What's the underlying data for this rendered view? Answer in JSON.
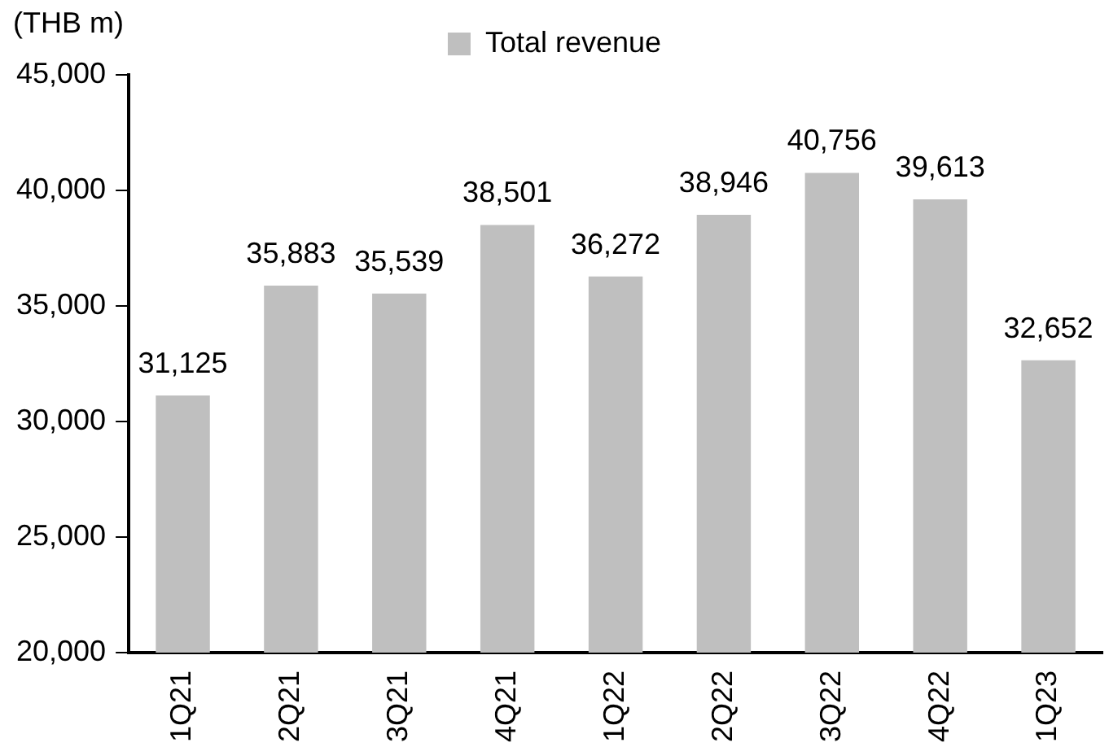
{
  "chart_data": {
    "type": "bar",
    "ylabel": "(THB m)",
    "categories": [
      "1Q21",
      "2Q21",
      "3Q21",
      "4Q21",
      "1Q22",
      "2Q22",
      "3Q22",
      "4Q22",
      "1Q23"
    ],
    "series": [
      {
        "name": "Total revenue",
        "color": "#bfbfbf",
        "values": [
          31125,
          35883,
          35539,
          38501,
          36272,
          38946,
          40756,
          39613,
          32652
        ],
        "value_labels": [
          "31,125",
          "35,883",
          "35,539",
          "38,501",
          "36,272",
          "38,946",
          "40,756",
          "39,613",
          "32,652"
        ]
      }
    ],
    "ylim": [
      20000,
      45000
    ],
    "yticks": [
      {
        "value": 20000,
        "label": "20,000"
      },
      {
        "value": 25000,
        "label": "25,000"
      },
      {
        "value": 30000,
        "label": "30,000"
      },
      {
        "value": 35000,
        "label": "35,000"
      },
      {
        "value": 40000,
        "label": "40,000"
      },
      {
        "value": 45000,
        "label": "45,000"
      }
    ],
    "grid": false,
    "legend": "top"
  }
}
